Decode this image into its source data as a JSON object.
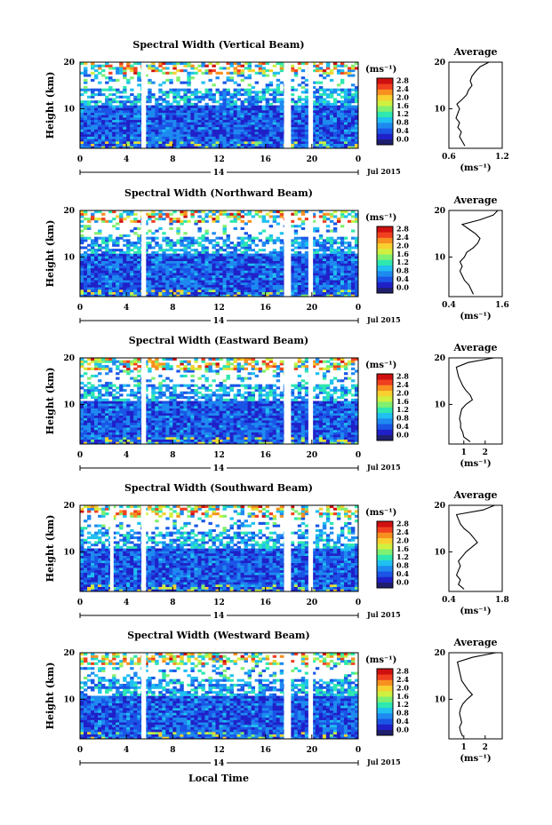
{
  "figure": {
    "xlabel": "Local Time",
    "date_label": "Jul 2015",
    "day_label": "14",
    "colorbar_unit": "(ms⁻¹)",
    "colorbar_ticks": [
      "0.0",
      "0.4",
      "0.8",
      "1.2",
      "1.6",
      "2.0",
      "2.4",
      "2.8"
    ],
    "colorbar_colors": [
      "#1f1f6e",
      "#2020c8",
      "#1a55e6",
      "#1e8af0",
      "#20c0f0",
      "#2ee8b0",
      "#80f070",
      "#d0f040",
      "#f8d030",
      "#f89020",
      "#f04020",
      "#d01010"
    ],
    "avg_title": "Average",
    "avg_xunit": "(ms⁻¹)"
  },
  "chart_data": [
    {
      "type": "heatmap",
      "title": "Spectral Width (Vertical Beam)",
      "xlabel": "Local Time",
      "ylabel": "Height (km)",
      "x_ticks": [
        "0",
        "4",
        "8",
        "12",
        "16",
        "20",
        "0"
      ],
      "y_ticks": [
        "10",
        "20"
      ],
      "xlim": [
        0,
        24
      ],
      "ylim": [
        1.5,
        20
      ],
      "gaps_hours": [
        [
          5.3,
          5.7
        ],
        [
          17.6,
          18.2
        ],
        [
          19.7,
          20.1
        ]
      ],
      "average_profile": {
        "title": "Average",
        "xlim": [
          0.6,
          1.2
        ],
        "x_ticks": [
          "0.6",
          "1.2"
        ],
        "height_km": [
          2,
          3,
          4,
          5,
          6,
          7,
          8,
          9,
          10,
          11,
          12,
          13,
          14,
          15,
          16,
          17,
          18,
          19,
          20
        ],
        "width_ms": [
          0.78,
          0.75,
          0.72,
          0.74,
          0.7,
          0.72,
          0.68,
          0.7,
          0.72,
          0.69,
          0.75,
          0.8,
          0.82,
          0.86,
          0.84,
          0.86,
          0.9,
          0.95,
          1.05
        ]
      }
    },
    {
      "type": "heatmap",
      "title": "Spectral Width (Northward Beam)",
      "xlabel": "Local Time",
      "ylabel": "Height (km)",
      "x_ticks": [
        "0",
        "4",
        "8",
        "12",
        "16",
        "20",
        "0"
      ],
      "y_ticks": [
        "10",
        "20"
      ],
      "xlim": [
        0,
        24
      ],
      "ylim": [
        1.5,
        20
      ],
      "gaps_hours": [
        [
          5.3,
          5.7
        ],
        [
          17.6,
          18.2
        ],
        [
          19.7,
          20.1
        ]
      ],
      "average_profile": {
        "title": "Average",
        "xlim": [
          0.4,
          1.6
        ],
        "x_ticks": [
          "0.4",
          "1.6"
        ],
        "height_km": [
          2,
          3,
          4,
          5,
          6,
          7,
          8,
          9,
          10,
          11,
          12,
          13,
          14,
          15,
          16,
          17,
          18,
          19,
          20
        ],
        "width_ms": [
          0.95,
          0.9,
          0.85,
          0.75,
          0.7,
          0.65,
          0.7,
          0.65,
          0.75,
          0.8,
          0.95,
          1.05,
          1.1,
          1.0,
          0.85,
          0.7,
          1.1,
          1.4,
          1.5
        ]
      }
    },
    {
      "type": "heatmap",
      "title": "Spectral Width (Eastward Beam)",
      "xlabel": "Local Time",
      "ylabel": "Height (km)",
      "x_ticks": [
        "0",
        "4",
        "8",
        "12",
        "16",
        "20",
        "0"
      ],
      "y_ticks": [
        "10",
        "20"
      ],
      "xlim": [
        0,
        24
      ],
      "ylim": [
        1.5,
        20
      ],
      "gaps_hours": [
        [
          5.3,
          5.7
        ],
        [
          17.6,
          18.2
        ],
        [
          19.7,
          20.1
        ]
      ],
      "average_profile": {
        "title": "Average",
        "xlim": [
          0.3,
          2.8
        ],
        "x_ticks": [
          "1",
          "2"
        ],
        "height_km": [
          2,
          3,
          4,
          5,
          6,
          7,
          8,
          9,
          10,
          11,
          12,
          13,
          14,
          15,
          16,
          17,
          18,
          19,
          20
        ],
        "width_ms": [
          1.3,
          1.0,
          0.95,
          0.85,
          0.85,
          0.8,
          0.85,
          0.9,
          1.1,
          1.4,
          1.3,
          1.1,
          0.95,
          0.85,
          0.75,
          0.7,
          0.65,
          1.2,
          2.4
        ]
      }
    },
    {
      "type": "heatmap",
      "title": "Spectral Width (Southward Beam)",
      "xlabel": "Local Time",
      "ylabel": "Height (km)",
      "x_ticks": [
        "0",
        "4",
        "8",
        "12",
        "16",
        "20",
        "0"
      ],
      "y_ticks": [
        "10",
        "20"
      ],
      "xlim": [
        0,
        24
      ],
      "ylim": [
        1.5,
        20
      ],
      "gaps_hours": [
        [
          2.6,
          2.9
        ],
        [
          5.3,
          5.7
        ],
        [
          17.6,
          18.2
        ],
        [
          19.7,
          20.1
        ]
      ],
      "average_profile": {
        "title": "Average",
        "xlim": [
          0.4,
          1.8
        ],
        "x_ticks": [
          "0.4",
          "1.8"
        ],
        "height_km": [
          2,
          3,
          4,
          5,
          6,
          7,
          8,
          9,
          10,
          11,
          12,
          13,
          14,
          15,
          16,
          17,
          18,
          19,
          20
        ],
        "width_ms": [
          0.8,
          0.65,
          0.7,
          0.6,
          0.65,
          0.7,
          0.65,
          0.75,
          0.85,
          1.0,
          1.15,
          1.05,
          0.95,
          0.8,
          0.7,
          0.65,
          0.6,
          1.3,
          1.6
        ]
      }
    },
    {
      "type": "heatmap",
      "title": "Spectral Width (Westward Beam)",
      "xlabel": "Local Time",
      "ylabel": "Height (km)",
      "x_ticks": [
        "0",
        "4",
        "8",
        "12",
        "16",
        "20",
        "0"
      ],
      "y_ticks": [
        "10",
        "20"
      ],
      "xlim": [
        0,
        24
      ],
      "ylim": [
        1.5,
        20
      ],
      "gaps_hours": [
        [
          5.3,
          5.7
        ],
        [
          17.6,
          18.2
        ],
        [
          19.7,
          20.1
        ]
      ],
      "average_profile": {
        "title": "Average",
        "xlim": [
          0.3,
          2.8
        ],
        "x_ticks": [
          "1",
          "2"
        ],
        "height_km": [
          2,
          3,
          4,
          5,
          6,
          7,
          8,
          9,
          10,
          11,
          12,
          13,
          14,
          15,
          16,
          17,
          18,
          19,
          20
        ],
        "width_ms": [
          0.95,
          0.85,
          0.8,
          0.9,
          0.85,
          0.8,
          0.85,
          0.95,
          1.15,
          1.4,
          1.2,
          1.05,
          0.9,
          0.85,
          0.8,
          0.75,
          0.7,
          1.4,
          2.5
        ]
      }
    }
  ]
}
